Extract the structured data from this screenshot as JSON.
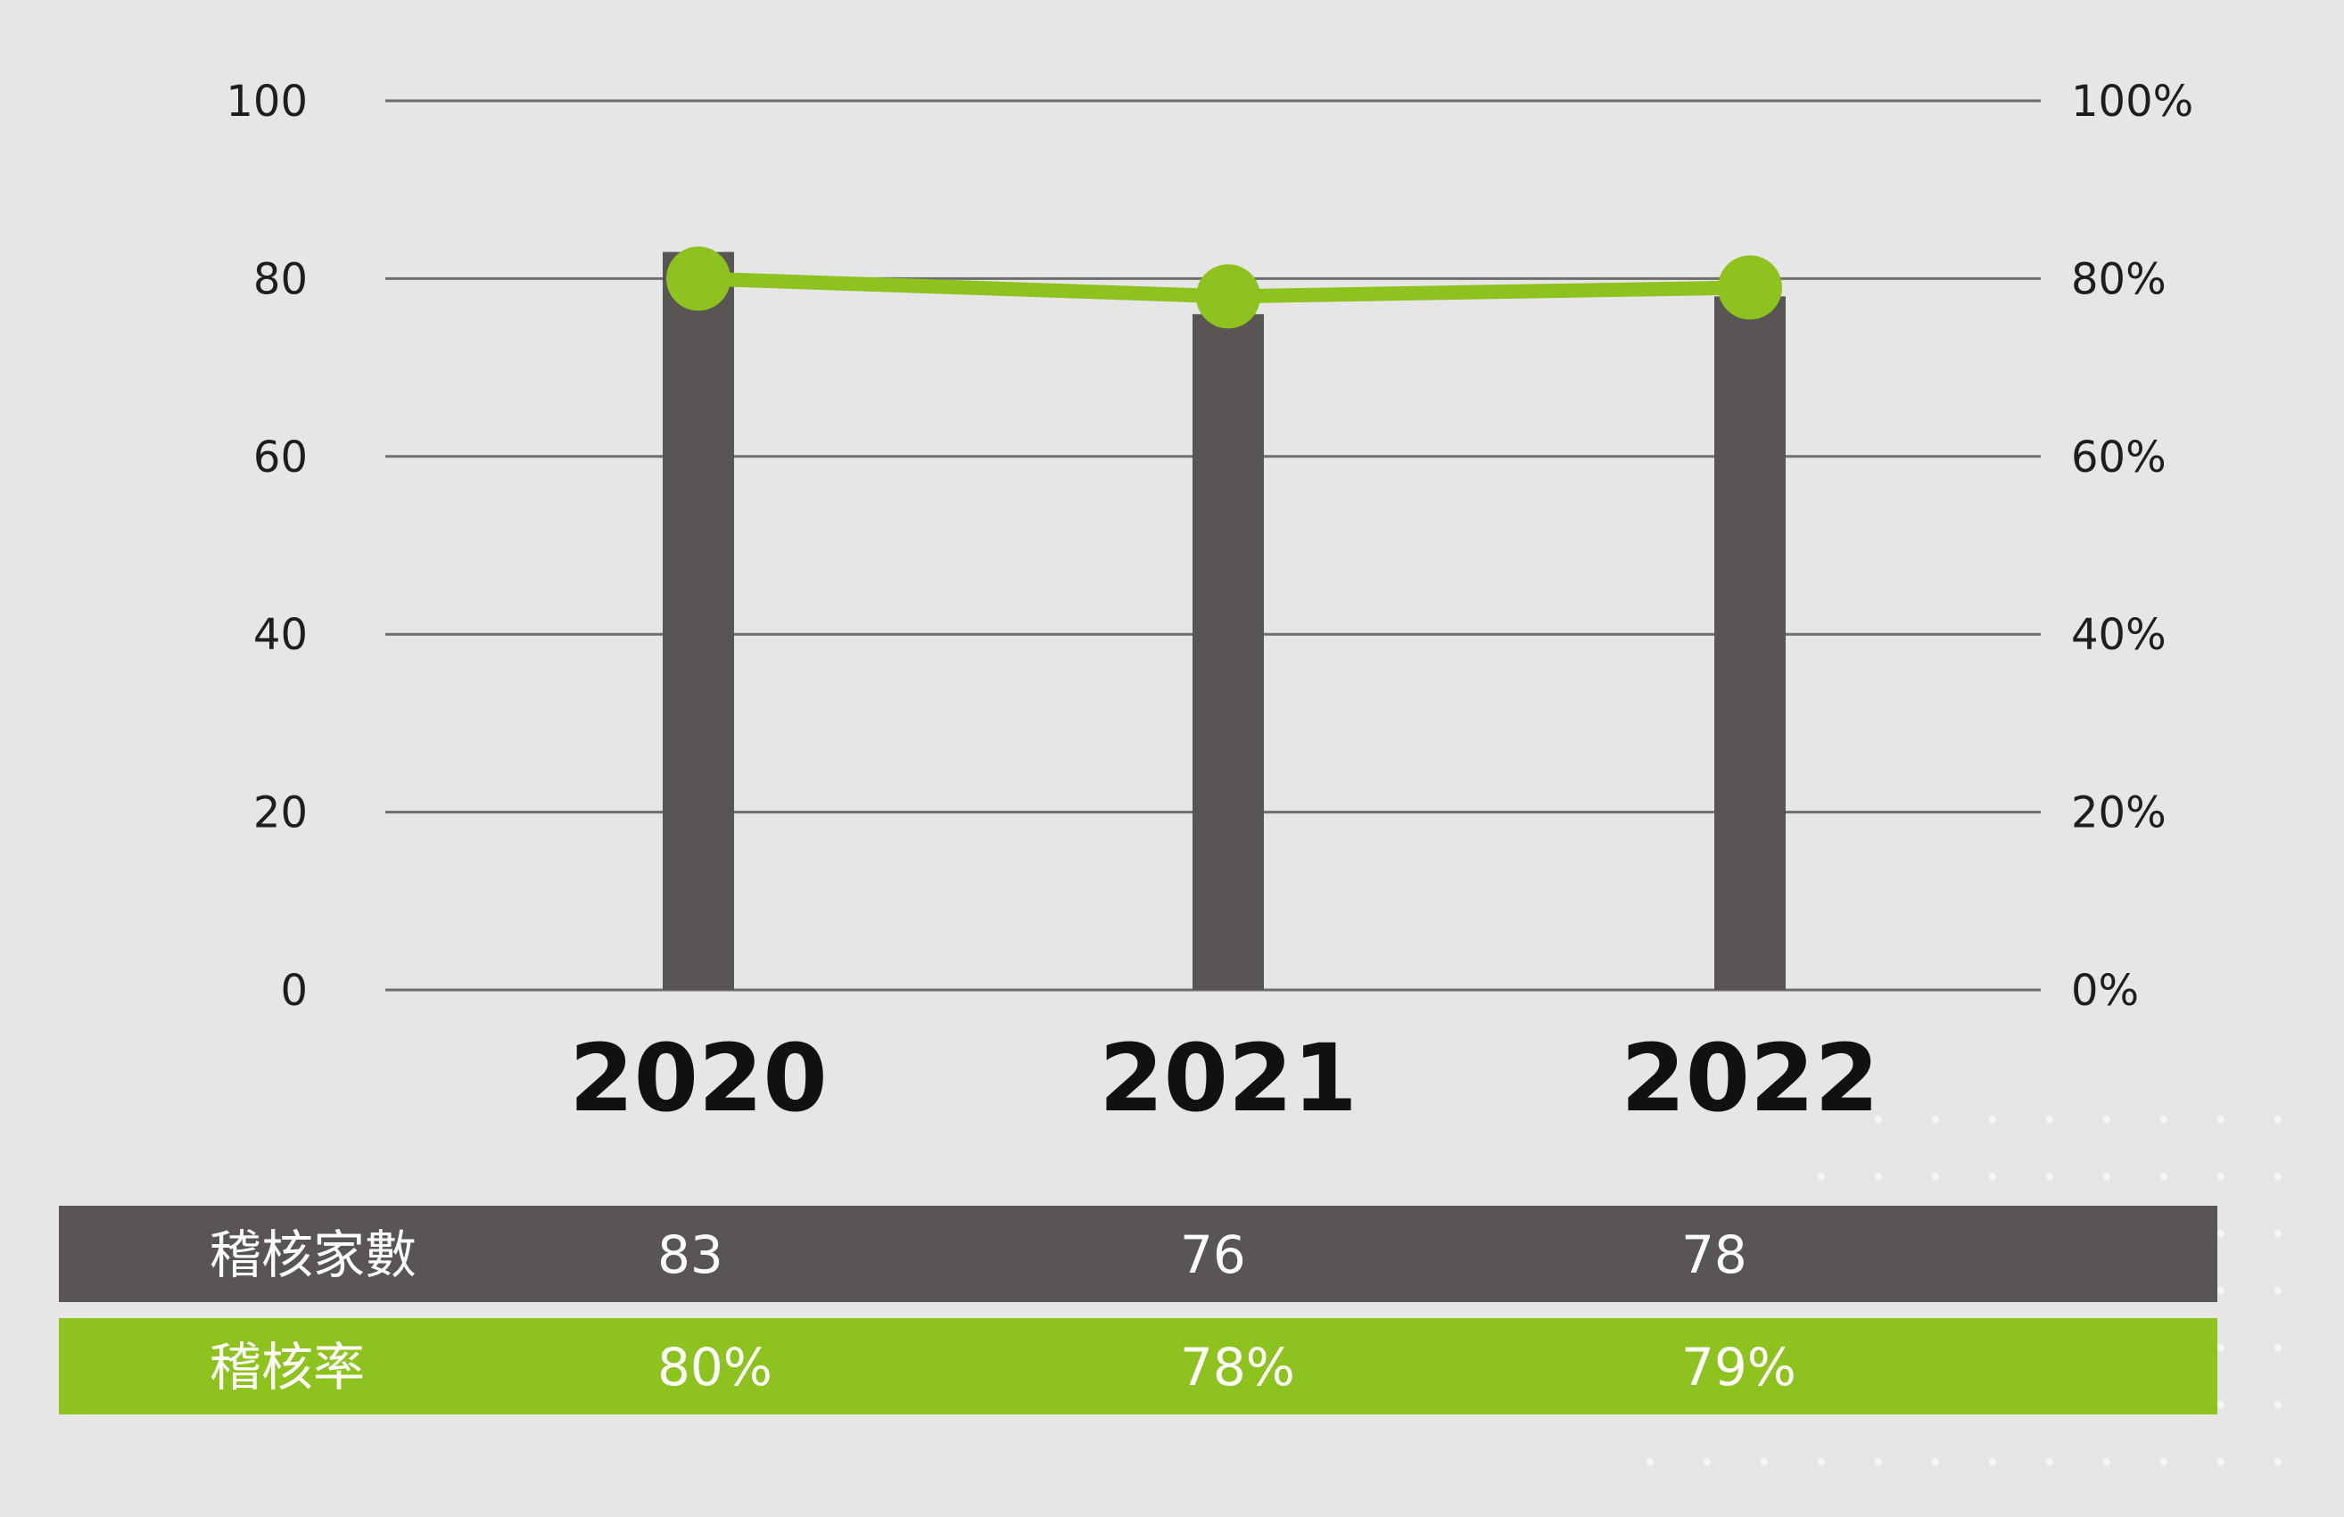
{
  "chart_data": {
    "type": "bar",
    "categories": [
      "2020",
      "2021",
      "2022"
    ],
    "series": [
      {
        "name": "稽核家數",
        "type": "bar",
        "axis": "left",
        "values": [
          83,
          76,
          78
        ]
      },
      {
        "name": "稽核率",
        "type": "line",
        "axis": "right",
        "values": [
          80,
          78,
          79
        ]
      }
    ],
    "ylim": [
      0,
      100
    ],
    "y2lim": [
      0,
      100
    ],
    "y_ticks": [
      "0",
      "20",
      "40",
      "60",
      "80",
      "100"
    ],
    "y2_ticks": [
      "0%",
      "20%",
      "40%",
      "60%",
      "80%",
      "100%"
    ],
    "grid": true,
    "table": {
      "rows": [
        {
          "label": "稽核家數",
          "values": [
            "83",
            "76",
            "78"
          ]
        },
        {
          "label": "稽核率",
          "values": [
            "80%",
            "78%",
            "79%"
          ]
        }
      ]
    }
  },
  "colors": {
    "bar": "#595554",
    "line": "#8dc21f",
    "grid": "#6e6e6e",
    "background": "#e6e6e6"
  }
}
